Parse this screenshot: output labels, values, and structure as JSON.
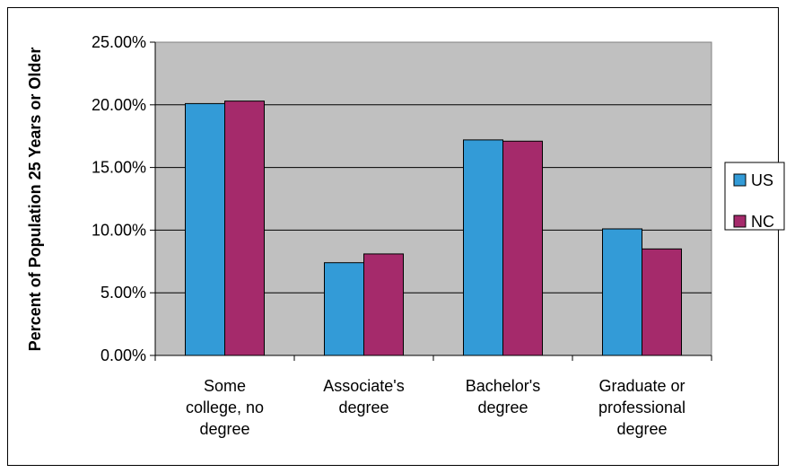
{
  "chart_data": {
    "type": "bar",
    "title": "",
    "xlabel": "",
    "ylabel": "Percent of Population 25 Years or Older",
    "categories": [
      [
        "Some",
        "college, no",
        "degree"
      ],
      [
        "Associate's",
        "degree"
      ],
      [
        "Bachelor's",
        "degree"
      ],
      [
        "Graduate or",
        "professional",
        "degree"
      ]
    ],
    "series": [
      {
        "name": "US",
        "values": [
          20.1,
          7.4,
          17.2,
          10.1
        ],
        "color": "#339bd7"
      },
      {
        "name": "NC",
        "values": [
          20.3,
          8.1,
          17.1,
          8.5
        ],
        "color": "#a52a6b"
      }
    ],
    "ylim": [
      0,
      25
    ],
    "yticks": [
      "0.00%",
      "5.00%",
      "10.00%",
      "15.00%",
      "20.00%",
      "25.00%"
    ],
    "grid": true,
    "plot_background": "#c0c0c0",
    "legend_position": "right"
  }
}
